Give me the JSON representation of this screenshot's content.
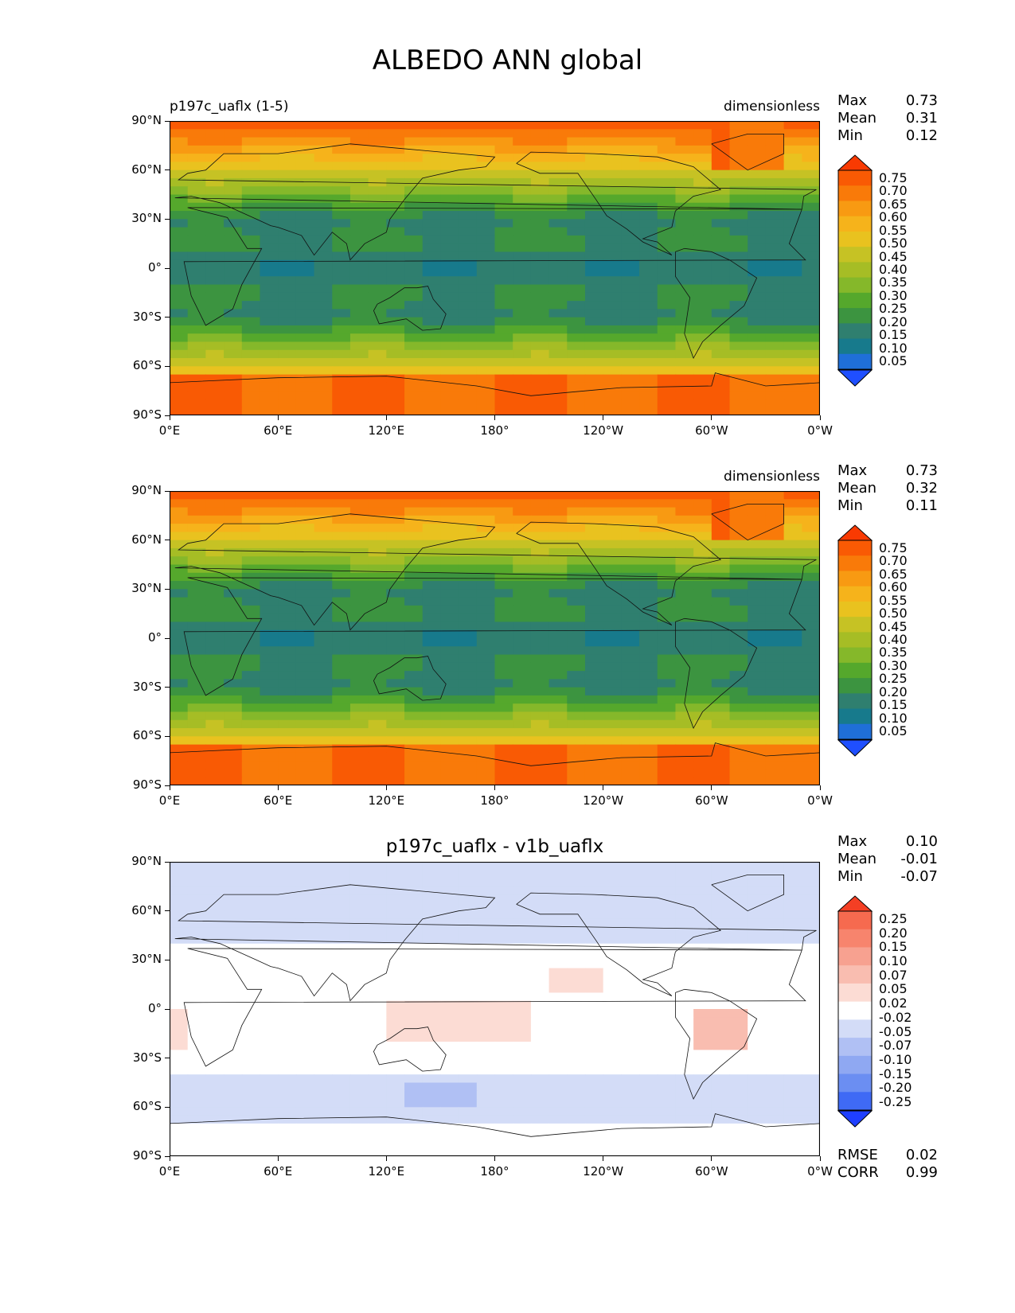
{
  "title": "ALBEDO ANN global",
  "axes": {
    "lat_ticks": [
      "90°N",
      "60°N",
      "30°N",
      "0°",
      "30°S",
      "60°S",
      "90°S"
    ],
    "lon_ticks": [
      "0°E",
      "60°E",
      "120°E",
      "180°",
      "120°W",
      "60°W",
      "0°W"
    ]
  },
  "colors": {
    "sequential": [
      "#1f4fff",
      "#1f6fd8",
      "#177a8c",
      "#2f7f6f",
      "#3c9440",
      "#55a82c",
      "#85b82a",
      "#a6bd25",
      "#c6c224",
      "#e9c21f",
      "#f6b31b",
      "#f89a12",
      "#f97a09",
      "#f95a04",
      "#f93a02"
    ],
    "diverging": [
      "#1f3fff",
      "#3f6af5",
      "#6b8ef2",
      "#8fa8f2",
      "#b0c0f4",
      "#d3dcf7",
      "#ffffff",
      "#fcdcd4",
      "#f9bdb0",
      "#f7a190",
      "#f7846d",
      "#f66a4f",
      "#f43f24"
    ]
  },
  "panels": [
    {
      "left_title": "p197c_uaflx (1-5)",
      "center_title": "",
      "units": "dimensionless",
      "stats": [
        {
          "label": "Max",
          "value": "0.73"
        },
        {
          "label": "Mean",
          "value": "0.31"
        },
        {
          "label": "Min",
          "value": "0.12"
        }
      ],
      "colorbar_labels": [
        "0.75",
        "0.70",
        "0.65",
        "0.60",
        "0.55",
        "0.50",
        "0.45",
        "0.40",
        "0.35",
        "0.30",
        "0.25",
        "0.20",
        "0.15",
        "0.10",
        "0.05"
      ],
      "bottom_stats": []
    },
    {
      "left_title": "",
      "center_title": "",
      "units": "dimensionless",
      "stats": [
        {
          "label": "Max",
          "value": "0.73"
        },
        {
          "label": "Mean",
          "value": "0.32"
        },
        {
          "label": "Min",
          "value": "0.11"
        }
      ],
      "colorbar_labels": [
        "0.75",
        "0.70",
        "0.65",
        "0.60",
        "0.55",
        "0.50",
        "0.45",
        "0.40",
        "0.35",
        "0.30",
        "0.25",
        "0.20",
        "0.15",
        "0.10",
        "0.05"
      ],
      "bottom_stats": []
    },
    {
      "left_title": "",
      "center_title": "p197c_uaflx - v1b_uaflx",
      "units": "",
      "stats": [
        {
          "label": "Max",
          "value": "0.10"
        },
        {
          "label": "Mean",
          "value": "-0.01"
        },
        {
          "label": "Min",
          "value": "-0.07"
        }
      ],
      "colorbar_labels": [
        "0.25",
        "0.20",
        "0.15",
        "0.10",
        "0.07",
        "0.05",
        "0.02",
        "-0.02",
        "-0.05",
        "-0.07",
        "-0.10",
        "-0.15",
        "-0.20",
        "-0.25"
      ],
      "bottom_stats": [
        {
          "label": "RMSE",
          "value": "0.02"
        },
        {
          "label": "CORR",
          "value": "0.99"
        }
      ]
    }
  ]
}
